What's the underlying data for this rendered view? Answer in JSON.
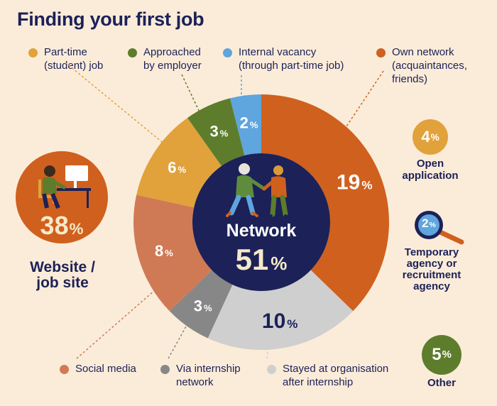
{
  "title": "Finding your first job",
  "colors": {
    "navy": "#1c2157",
    "background": "#fbecd9"
  },
  "chart_data": {
    "type": "pie",
    "center": {
      "label": "Network",
      "value": 51,
      "unit": "%"
    },
    "slices": [
      {
        "name": "Own network (acquaintances, friends)",
        "value": 19,
        "color": "#d0601e",
        "label_color": "#ffffff"
      },
      {
        "name": "Stayed at organisation after internship",
        "value": 10,
        "color": "#cfcfcf",
        "label_color": "#1c2157"
      },
      {
        "name": "Via internship network",
        "value": 3,
        "color": "#878787",
        "label_color": "#ffffff"
      },
      {
        "name": "Social media",
        "value": 8,
        "color": "#d07a55",
        "label_color": "#ffffff"
      },
      {
        "name": "Part-time (student) job",
        "value": 6,
        "color": "#e1a23b",
        "label_color": "#ffffff"
      },
      {
        "name": "Approached by employer",
        "value": 3,
        "color": "#5e7d2c",
        "label_color": "#ffffff"
      },
      {
        "name": "Internal vacancy (through part-time job)",
        "value": 2,
        "color": "#5fa5de",
        "label_color": "#ffffff"
      }
    ],
    "others": [
      {
        "name": "Website / job site",
        "value": 38,
        "color": "#d0601e"
      },
      {
        "name": "Open application",
        "value": 4,
        "color": "#e1a23b"
      },
      {
        "name": "Temporary agency or recruitment agency",
        "value": 2,
        "color": "#5fa5de"
      },
      {
        "name": "Other",
        "value": 5,
        "color": "#5e7d2c"
      }
    ]
  },
  "legend": {
    "part_time": "Part-time\n(student) job",
    "approached": "Approached\nby employer",
    "internal": "Internal vacancy\n(through part-time job)",
    "own_network": "Own network\n(acquaintances,\nfriends)",
    "social_media": "Social media",
    "internship_network": "Via internship\nnetwork",
    "stayed": "Stayed at organisation\nafter internship"
  },
  "labels": {
    "website": "Website /\njob site",
    "open_application": "Open\napplication",
    "temp_agency": "Temporary\nagency or\nrecruitment\nagency",
    "other": "Other",
    "pct_sign": "%"
  },
  "values": {
    "website": "38",
    "open_application": "4",
    "temp_agency": "2",
    "other": "5"
  }
}
